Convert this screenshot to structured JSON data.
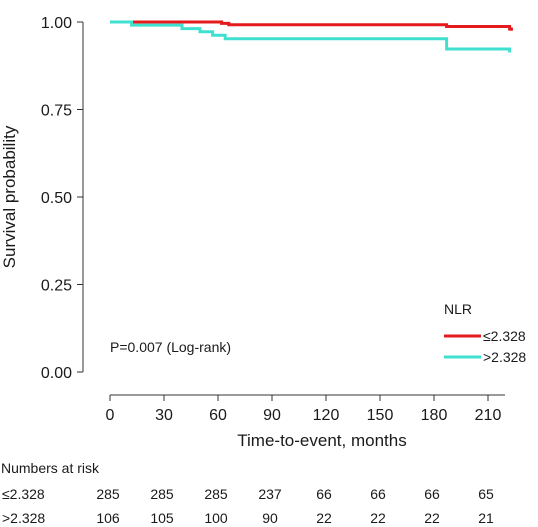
{
  "chart_data": {
    "type": "line",
    "subtype": "kaplan-meier-step",
    "xlabel": "Time-to-event, months",
    "ylabel": "Survival probability",
    "xlim": [
      0,
      225
    ],
    "ylim": [
      0,
      1
    ],
    "xticks": [
      0,
      30,
      60,
      90,
      120,
      150,
      180,
      210
    ],
    "yticks": [
      0.0,
      0.25,
      0.5,
      0.75,
      1.0
    ],
    "ytick_labels": [
      "0.00",
      "0.25",
      "0.50",
      "0.75",
      "1.00"
    ],
    "grid": false,
    "legend": {
      "title": "NLR",
      "position": "bottom-right"
    },
    "annotation": "P=0.007 (Log-rank)",
    "series": [
      {
        "name": "≤2.328",
        "color": "#e41a1c",
        "steps": [
          [
            0,
            1.0
          ],
          [
            60,
            1.0
          ],
          [
            62,
            0.996
          ],
          [
            66,
            0.992
          ],
          [
            185,
            0.992
          ],
          [
            187,
            0.987
          ],
          [
            221,
            0.987
          ],
          [
            222,
            0.98
          ],
          [
            223,
            0.975
          ]
        ]
      },
      {
        "name": ">2.328",
        "color": "#40e0d0",
        "steps": [
          [
            0,
            1.0
          ],
          [
            10,
            1.0
          ],
          [
            12,
            0.991
          ],
          [
            38,
            0.991
          ],
          [
            40,
            0.981
          ],
          [
            48,
            0.981
          ],
          [
            50,
            0.972
          ],
          [
            55,
            0.972
          ],
          [
            57,
            0.962
          ],
          [
            62,
            0.962
          ],
          [
            64,
            0.952
          ],
          [
            186,
            0.952
          ],
          [
            187,
            0.923
          ],
          [
            221,
            0.923
          ],
          [
            222,
            0.913
          ]
        ]
      }
    ],
    "risk_table": {
      "title": "Numbers at risk",
      "rows": [
        {
          "label": "≤2.328",
          "values": [
            285,
            285,
            285,
            237,
            66,
            66,
            66,
            65
          ]
        },
        {
          "label": ">2.328",
          "values": [
            106,
            105,
            100,
            90,
            22,
            22,
            22,
            21
          ]
        }
      ]
    }
  }
}
